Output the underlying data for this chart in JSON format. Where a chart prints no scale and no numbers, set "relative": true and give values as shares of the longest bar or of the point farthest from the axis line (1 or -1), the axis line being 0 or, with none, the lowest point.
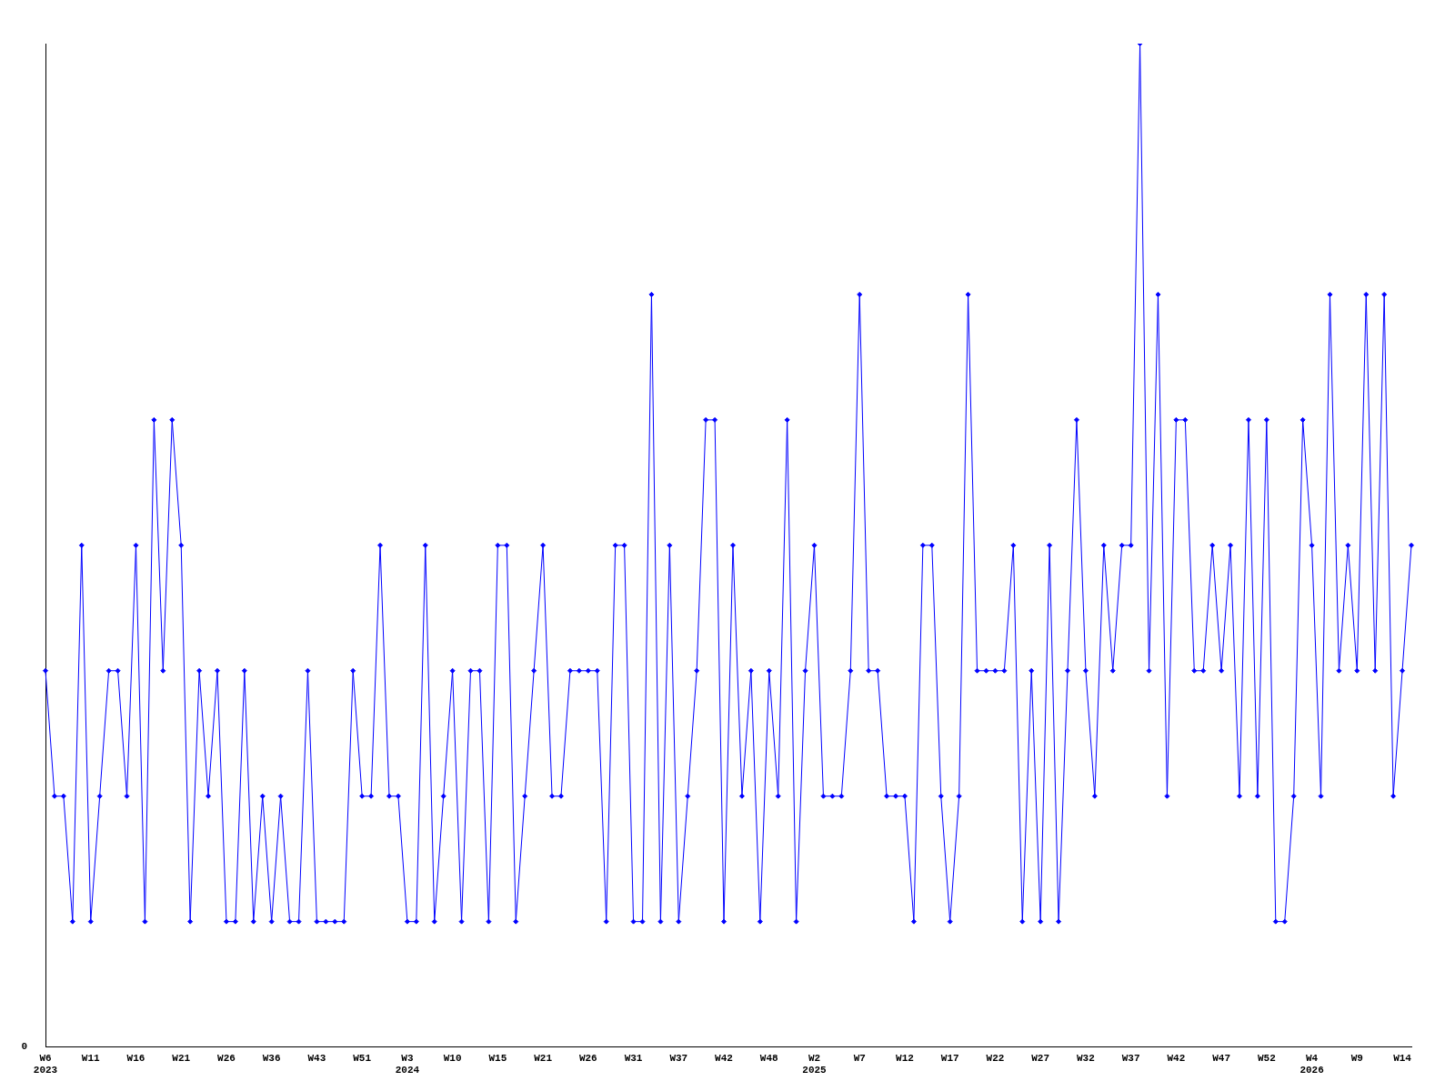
{
  "chart_data": {
    "type": "line",
    "relative": true,
    "marker": "diamond",
    "line_style": "solid",
    "grid": false,
    "legend": false,
    "categories": [
      "W6\n2023",
      null,
      null,
      null,
      null,
      "W11",
      null,
      null,
      null,
      null,
      "W16",
      null,
      null,
      null,
      null,
      "W21",
      null,
      null,
      null,
      null,
      "W26",
      null,
      null,
      null,
      null,
      "W36",
      null,
      null,
      null,
      null,
      "W43",
      null,
      null,
      null,
      null,
      "W51",
      null,
      null,
      null,
      null,
      "W3\n2024",
      null,
      null,
      null,
      null,
      "W10",
      null,
      null,
      null,
      null,
      "W15",
      null,
      null,
      null,
      null,
      "W21",
      null,
      null,
      null,
      null,
      "W26",
      null,
      null,
      null,
      null,
      "W31",
      null,
      null,
      null,
      null,
      "W37",
      null,
      null,
      null,
      null,
      "W42",
      null,
      null,
      null,
      null,
      "W48",
      null,
      null,
      null,
      null,
      "W2\n2025",
      null,
      null,
      null,
      null,
      "W7",
      null,
      null,
      null,
      null,
      "W12",
      null,
      null,
      null,
      null,
      "W17",
      null,
      null,
      null,
      null,
      "W22",
      null,
      null,
      null,
      null,
      "W27",
      null,
      null,
      null,
      null,
      "W32",
      null,
      null,
      null,
      null,
      "W37",
      null,
      null,
      null,
      null,
      "W42",
      null,
      null,
      null,
      null,
      "W47",
      null,
      null,
      null,
      null,
      "W52",
      null,
      null,
      null,
      null,
      "W4\n2026",
      null,
      null,
      null,
      null,
      "W9",
      null,
      null,
      null,
      null,
      "W14",
      null
    ],
    "series": [
      {
        "color": "#0000ff",
        "values": [
          0.375,
          0.25,
          0.25,
          0.125,
          0.5,
          0.125,
          0.25,
          0.375,
          0.375,
          0.25,
          0.5,
          0.125,
          0.625,
          0.375,
          0.625,
          0.5,
          0.125,
          0.375,
          0.25,
          0.375,
          0.125,
          0.125,
          0.375,
          0.125,
          0.25,
          0.125,
          0.25,
          0.125,
          0.125,
          0.375,
          0.125,
          0.125,
          0.125,
          0.125,
          0.375,
          0.25,
          0.25,
          0.5,
          0.25,
          0.25,
          0.125,
          0.125,
          0.5,
          0.125,
          0.25,
          0.375,
          0.125,
          0.375,
          0.375,
          0.125,
          0.5,
          0.5,
          0.125,
          0.25,
          0.375,
          0.5,
          0.25,
          0.25,
          0.375,
          0.375,
          0.375,
          0.375,
          0.125,
          0.5,
          0.5,
          0.125,
          0.125,
          0.75,
          0.125,
          0.5,
          0.125,
          0.25,
          0.375,
          0.625,
          0.625,
          0.125,
          0.5,
          0.25,
          0.375,
          0.125,
          0.375,
          0.25,
          0.625,
          0.125,
          0.375,
          0.5,
          0.25,
          0.25,
          0.25,
          0.375,
          0.75,
          0.375,
          0.375,
          0.25,
          0.25,
          0.25,
          0.125,
          0.5,
          0.5,
          0.25,
          0.125,
          0.25,
          0.75,
          0.375,
          0.375,
          0.375,
          0.375,
          0.5,
          0.125,
          0.375,
          0.125,
          0.5,
          0.125,
          0.375,
          0.625,
          0.375,
          0.25,
          0.5,
          0.375,
          0.5,
          0.5,
          1,
          0.375,
          0.75,
          0.25,
          0.625,
          0.625,
          0.375,
          0.375,
          0.5,
          0.375,
          0.5,
          0.25,
          0.625,
          0.25,
          0.625,
          0.125,
          0.125,
          0.25,
          0.625,
          0.5,
          0.25,
          0.75,
          0.375,
          0.5,
          0.375,
          0.75,
          0.375,
          0.75,
          0.25,
          0.375,
          0.5
        ]
      }
    ],
    "annotations": [
      "0"
    ]
  }
}
